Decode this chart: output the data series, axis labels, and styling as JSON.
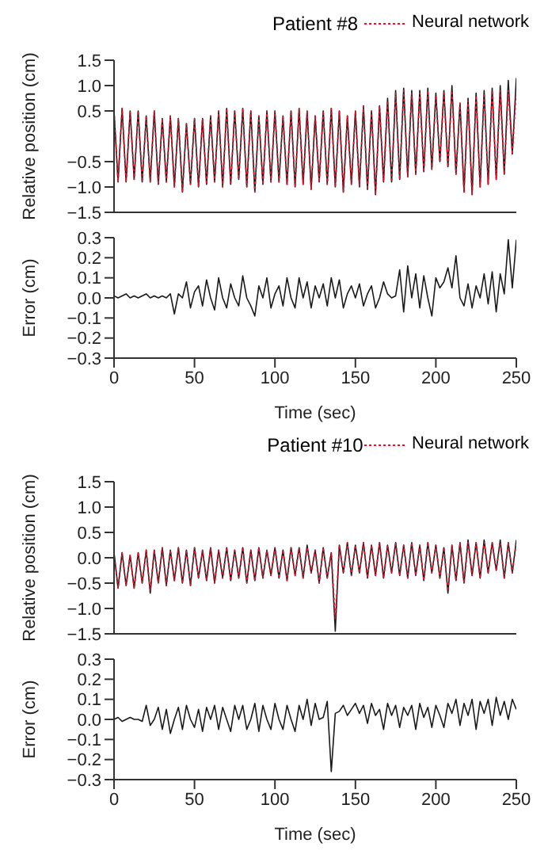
{
  "chart_data": [
    {
      "type": "line",
      "title": "Patient #8",
      "ylabel": "Relative position (cm)",
      "legend": "top right",
      "tick_labels": "y",
      "x": [
        0,
        2.5,
        5,
        7.5,
        10,
        12.5,
        15,
        17.5,
        20,
        22.5,
        25,
        27.5,
        30,
        32.5,
        35,
        37.5,
        40,
        42.5,
        45,
        47.5,
        50,
        52.5,
        55,
        57.5,
        60,
        62.5,
        65,
        67.5,
        70,
        72.5,
        75,
        77.5,
        80,
        82.5,
        85,
        87.5,
        90,
        92.5,
        95,
        97.5,
        100,
        102.5,
        105,
        107.5,
        110,
        112.5,
        115,
        117.5,
        120,
        122.5,
        125,
        127.5,
        130,
        132.5,
        135,
        137.5,
        140,
        142.5,
        145,
        147.5,
        150,
        152.5,
        155,
        157.5,
        160,
        162.5,
        165,
        167.5,
        170,
        172.5,
        175,
        177.5,
        180,
        182.5,
        185,
        187.5,
        190,
        192.5,
        195,
        197.5,
        200,
        202.5,
        205,
        207.5,
        210,
        212.5,
        215,
        217.5,
        220,
        222.5,
        225,
        227.5,
        230,
        232.5,
        235,
        237.5,
        240,
        242.5,
        245,
        247.5,
        250
      ],
      "xlim": [
        0,
        250
      ],
      "ylim": [
        -1.5,
        1.5
      ],
      "yticks": [
        {
          "value": -1.5,
          "label": "−1.5"
        },
        {
          "value": -1,
          "label": "−1.0"
        },
        {
          "value": -0.5,
          "label": "−0.5"
        },
        0.5,
        {
          "value": 1,
          "label": "1.0"
        },
        1.5
      ],
      "series": [
        {
          "color": "#1a1a1a",
          "line_style": "solid",
          "values": [
            0.5,
            -0.9,
            0.55,
            -0.9,
            0.5,
            -0.85,
            0.5,
            -0.9,
            0.4,
            -0.9,
            0.5,
            -0.95,
            0.35,
            -0.9,
            0.4,
            -1.0,
            0.35,
            -1.1,
            0.25,
            -0.95,
            0.35,
            -1.0,
            0.35,
            -0.95,
            0.4,
            -0.9,
            0.5,
            -1.0,
            0.55,
            -0.95,
            0.5,
            -0.85,
            0.55,
            -1.0,
            0.5,
            -1.1,
            0.4,
            -0.95,
            0.5,
            -0.9,
            0.5,
            -0.9,
            0.4,
            -0.95,
            0.5,
            -1.0,
            0.55,
            -0.95,
            0.5,
            -1.05,
            0.4,
            -0.9,
            0.5,
            -0.95,
            0.55,
            -1.0,
            0.5,
            -1.1,
            0.4,
            -0.95,
            0.5,
            -1.0,
            0.6,
            -1.05,
            0.5,
            -1.15,
            0.6,
            -0.9,
            0.75,
            -0.9,
            0.9,
            -0.85,
            0.95,
            -0.8,
            0.9,
            -0.75,
            0.9,
            -0.7,
            0.95,
            -0.65,
            0.85,
            -0.5,
            0.9,
            -0.6,
            1.0,
            -0.75,
            0.65,
            -1.1,
            0.75,
            -1.15,
            0.85,
            -1.0,
            0.9,
            -0.95,
            0.95,
            -0.85,
            1.0,
            -0.75,
            1.1,
            -0.35,
            1.15
          ]
        },
        {
          "name": "Neural network",
          "color": "#e8102a",
          "line_style": "dotted",
          "values": [
            0.5,
            -0.9,
            0.55,
            -0.9,
            0.5,
            -0.85,
            0.5,
            -0.9,
            0.4,
            -0.9,
            0.5,
            -0.95,
            0.35,
            -0.9,
            0.4,
            -1.0,
            0.35,
            -1.1,
            0.25,
            -0.95,
            0.35,
            -1.0,
            0.35,
            -0.95,
            0.4,
            -0.9,
            0.5,
            -1.0,
            0.55,
            -0.95,
            0.5,
            -0.85,
            0.55,
            -1.0,
            0.5,
            -1.1,
            0.4,
            -0.95,
            0.5,
            -0.9,
            0.5,
            -0.9,
            0.4,
            -0.95,
            0.5,
            -1.0,
            0.55,
            -0.95,
            0.5,
            -1.05,
            0.4,
            -0.9,
            0.5,
            -0.95,
            0.55,
            -1.0,
            0.5,
            -1.1,
            0.4,
            -0.95,
            0.5,
            -1.0,
            0.6,
            -1.05,
            0.5,
            -1.15,
            0.6,
            -0.9,
            0.7,
            -0.9,
            0.85,
            -0.85,
            0.9,
            -0.8,
            0.85,
            -0.75,
            0.85,
            -0.7,
            0.9,
            -0.65,
            0.8,
            -0.5,
            0.85,
            -0.6,
            0.9,
            -0.75,
            0.65,
            -1.1,
            0.7,
            -1.15,
            0.8,
            -1.0,
            0.85,
            -0.95,
            0.9,
            -0.85,
            0.9,
            -0.75,
            0.9,
            -0.35,
            0.9
          ]
        }
      ]
    },
    {
      "type": "line",
      "xlabel": "Time (sec)",
      "ylabel": "Error (cm)",
      "x": [
        0,
        2.5,
        5,
        7.5,
        10,
        12.5,
        15,
        17.5,
        20,
        22.5,
        25,
        27.5,
        30,
        32.5,
        35,
        37.5,
        40,
        42.5,
        45,
        47.5,
        50,
        52.5,
        55,
        57.5,
        60,
        62.5,
        65,
        67.5,
        70,
        72.5,
        75,
        77.5,
        80,
        82.5,
        85,
        87.5,
        90,
        92.5,
        95,
        97.5,
        100,
        102.5,
        105,
        107.5,
        110,
        112.5,
        115,
        117.5,
        120,
        122.5,
        125,
        127.5,
        130,
        132.5,
        135,
        137.5,
        140,
        142.5,
        145,
        147.5,
        150,
        152.5,
        155,
        157.5,
        160,
        162.5,
        165,
        167.5,
        170,
        172.5,
        175,
        177.5,
        180,
        182.5,
        185,
        187.5,
        190,
        192.5,
        195,
        197.5,
        200,
        202.5,
        205,
        207.5,
        210,
        212.5,
        215,
        217.5,
        220,
        222.5,
        225,
        227.5,
        230,
        232.5,
        235,
        237.5,
        240,
        242.5,
        245,
        247.5,
        250
      ],
      "xlim": [
        0,
        250
      ],
      "xticks": [
        0,
        50,
        100,
        150,
        200,
        250
      ],
      "ylim": [
        -0.3,
        0.3
      ],
      "yticks": [
        {
          "value": -0.3,
          "label": "−0.3"
        },
        {
          "value": -0.2,
          "label": "−0.2"
        },
        {
          "value": -0.1,
          "label": "−0.1"
        },
        {
          "value": 0,
          "label": "0.0"
        },
        0.1,
        0.2,
        0.3
      ],
      "series": [
        {
          "color": "#1a1a1a",
          "line_style": "solid",
          "values": [
            0.01,
            0.0,
            0.01,
            0.02,
            0.0,
            0.01,
            0.0,
            0.01,
            0.02,
            0.0,
            0.01,
            0.0,
            0.01,
            0.0,
            0.02,
            -0.08,
            0.02,
            0.0,
            0.08,
            -0.05,
            0.03,
            0.06,
            -0.04,
            0.09,
            0.0,
            -0.06,
            0.1,
            0.0,
            -0.05,
            0.07,
            0.0,
            -0.04,
            0.11,
            0.0,
            -0.04,
            -0.09,
            0.06,
            0.0,
            0.1,
            -0.05,
            0.02,
            0.06,
            -0.04,
            0.1,
            0.0,
            -0.05,
            0.1,
            0.0,
            0.08,
            -0.05,
            0.06,
            0.0,
            0.07,
            -0.04,
            0.1,
            0.0,
            0.09,
            -0.05,
            0.02,
            0.06,
            0.0,
            0.07,
            -0.04,
            0.02,
            0.06,
            -0.05,
            0.0,
            0.08,
            0.02,
            0.0,
            0.01,
            0.14,
            -0.07,
            0.16,
            0.0,
            0.12,
            -0.05,
            0.11,
            0.0,
            -0.09,
            0.1,
            0.05,
            0.08,
            0.15,
            0.05,
            0.21,
            0.0,
            -0.04,
            0.07,
            -0.05,
            0.06,
            0.0,
            0.12,
            -0.03,
            0.13,
            -0.07,
            0.12,
            0.02,
            0.29,
            0.05,
            0.29
          ]
        }
      ]
    },
    {
      "type": "line",
      "title": "Patient #10",
      "ylabel": "Relative position (cm)",
      "legend": "top right",
      "tick_labels": "y",
      "x": [
        0,
        2.5,
        5,
        7.5,
        10,
        12.5,
        15,
        17.5,
        20,
        22.5,
        25,
        27.5,
        30,
        32.5,
        35,
        37.5,
        40,
        42.5,
        45,
        47.5,
        50,
        52.5,
        55,
        57.5,
        60,
        62.5,
        65,
        67.5,
        70,
        72.5,
        75,
        77.5,
        80,
        82.5,
        85,
        87.5,
        90,
        92.5,
        95,
        97.5,
        100,
        102.5,
        105,
        107.5,
        110,
        112.5,
        115,
        117.5,
        120,
        122.5,
        125,
        127.5,
        130,
        132.5,
        135,
        137.5,
        140,
        142.5,
        145,
        147.5,
        150,
        152.5,
        155,
        157.5,
        160,
        162.5,
        165,
        167.5,
        170,
        172.5,
        175,
        177.5,
        180,
        182.5,
        185,
        187.5,
        190,
        192.5,
        195,
        197.5,
        200,
        202.5,
        205,
        207.5,
        210,
        212.5,
        215,
        217.5,
        220,
        222.5,
        225,
        227.5,
        230,
        232.5,
        235,
        237.5,
        240,
        242.5,
        245,
        247.5,
        250
      ],
      "xlim": [
        0,
        250
      ],
      "ylim": [
        -1.5,
        1.5
      ],
      "yticks": [
        {
          "value": -1.5,
          "label": "−1.5"
        },
        {
          "value": -1,
          "label": "−1.0"
        },
        {
          "value": -0.5,
          "label": "−0.5"
        },
        {
          "value": 0,
          "label": "0.0"
        },
        0.5,
        {
          "value": 1,
          "label": "1.0"
        },
        1.5
      ],
      "series": [
        {
          "color": "#1a1a1a",
          "line_style": "solid",
          "values": [
            0.1,
            -0.6,
            0.1,
            -0.55,
            0.05,
            -0.6,
            0.1,
            -0.5,
            0.15,
            -0.7,
            0.15,
            -0.5,
            0.2,
            -0.55,
            0.15,
            -0.45,
            0.2,
            -0.5,
            0.15,
            -0.55,
            0.2,
            -0.4,
            0.15,
            -0.45,
            0.2,
            -0.5,
            0.15,
            -0.4,
            0.2,
            -0.45,
            0.15,
            -0.4,
            0.2,
            -0.5,
            0.15,
            -0.45,
            0.2,
            -0.4,
            0.15,
            -0.35,
            0.2,
            -0.4,
            0.15,
            -0.45,
            0.2,
            -0.35,
            0.2,
            -0.4,
            0.25,
            -0.3,
            0.15,
            -0.5,
            0.2,
            -0.4,
            0.1,
            -1.45,
            0.25,
            -0.3,
            0.3,
            -0.35,
            0.25,
            -0.3,
            0.3,
            -0.4,
            0.25,
            -0.35,
            0.3,
            -0.4,
            0.25,
            -0.3,
            0.3,
            -0.35,
            0.25,
            -0.4,
            0.3,
            -0.35,
            0.25,
            -0.45,
            0.3,
            -0.3,
            0.25,
            -0.4,
            0.2,
            -0.7,
            0.25,
            -0.45,
            0.3,
            -0.5,
            0.35,
            -0.35,
            0.3,
            -0.4,
            0.35,
            -0.3,
            0.3,
            -0.25,
            0.35,
            -0.4,
            0.3,
            -0.3,
            0.35
          ]
        },
        {
          "name": "Neural network",
          "color": "#e8102a",
          "line_style": "dotted",
          "values": [
            0.1,
            -0.6,
            0.1,
            -0.55,
            0.05,
            -0.6,
            0.1,
            -0.5,
            0.15,
            -0.65,
            0.15,
            -0.5,
            0.2,
            -0.55,
            0.15,
            -0.45,
            0.2,
            -0.5,
            0.15,
            -0.55,
            0.2,
            -0.4,
            0.15,
            -0.45,
            0.2,
            -0.5,
            0.15,
            -0.4,
            0.2,
            -0.45,
            0.15,
            -0.4,
            0.2,
            -0.5,
            0.15,
            -0.45,
            0.2,
            -0.4,
            0.15,
            -0.35,
            0.2,
            -0.4,
            0.15,
            -0.45,
            0.2,
            -0.35,
            0.2,
            -0.4,
            0.2,
            -0.3,
            0.15,
            -0.5,
            0.2,
            -0.4,
            0.1,
            -1.2,
            0.25,
            -0.3,
            0.3,
            -0.35,
            0.25,
            -0.3,
            0.3,
            -0.4,
            0.25,
            -0.35,
            0.3,
            -0.4,
            0.25,
            -0.3,
            0.3,
            -0.35,
            0.25,
            -0.4,
            0.3,
            -0.35,
            0.25,
            -0.45,
            0.3,
            -0.3,
            0.25,
            -0.4,
            0.2,
            -0.65,
            0.25,
            -0.45,
            0.3,
            -0.5,
            0.3,
            -0.35,
            0.3,
            -0.4,
            0.3,
            -0.3,
            0.3,
            -0.25,
            0.3,
            -0.4,
            0.3,
            -0.3,
            0.3
          ]
        }
      ]
    },
    {
      "type": "line",
      "xlabel": "Time (sec)",
      "ylabel": "Error (cm)",
      "x": [
        0,
        2.5,
        5,
        7.5,
        10,
        12.5,
        15,
        17.5,
        20,
        22.5,
        25,
        27.5,
        30,
        32.5,
        35,
        37.5,
        40,
        42.5,
        45,
        47.5,
        50,
        52.5,
        55,
        57.5,
        60,
        62.5,
        65,
        67.5,
        70,
        72.5,
        75,
        77.5,
        80,
        82.5,
        85,
        87.5,
        90,
        92.5,
        95,
        97.5,
        100,
        102.5,
        105,
        107.5,
        110,
        112.5,
        115,
        117.5,
        120,
        122.5,
        125,
        127.5,
        130,
        132.5,
        135,
        137.5,
        140,
        142.5,
        145,
        147.5,
        150,
        152.5,
        155,
        157.5,
        160,
        162.5,
        165,
        167.5,
        170,
        172.5,
        175,
        177.5,
        180,
        182.5,
        185,
        187.5,
        190,
        192.5,
        195,
        197.5,
        200,
        202.5,
        205,
        207.5,
        210,
        212.5,
        215,
        217.5,
        220,
        222.5,
        225,
        227.5,
        230,
        232.5,
        235,
        237.5,
        240,
        242.5,
        245,
        247.5,
        250
      ],
      "xlim": [
        0,
        250
      ],
      "xticks": [
        0,
        50,
        100,
        150,
        200,
        250
      ],
      "ylim": [
        -0.3,
        0.3
      ],
      "yticks": [
        {
          "value": -0.3,
          "label": "−0.3"
        },
        {
          "value": -0.2,
          "label": "−0.2"
        },
        {
          "value": -0.1,
          "label": "−0.1"
        },
        {
          "value": 0,
          "label": "0.0"
        },
        0.1,
        0.2,
        0.3
      ],
      "series": [
        {
          "color": "#1a1a1a",
          "line_style": "solid",
          "values": [
            0.0,
            0.01,
            -0.01,
            0.0,
            0.01,
            0.0,
            0.0,
            -0.01,
            0.07,
            -0.03,
            0.0,
            0.06,
            -0.05,
            0.05,
            -0.07,
            0.0,
            0.06,
            -0.05,
            0.07,
            0.0,
            -0.04,
            0.05,
            -0.06,
            0.06,
            0.0,
            0.07,
            -0.05,
            0.06,
            0.0,
            -0.06,
            0.07,
            0.0,
            0.07,
            -0.05,
            0.0,
            0.08,
            -0.06,
            0.07,
            0.0,
            -0.05,
            0.08,
            0.0,
            -0.05,
            0.07,
            0.0,
            -0.06,
            0.07,
            0.0,
            0.1,
            -0.03,
            0.08,
            0.0,
            0.01,
            0.09,
            -0.26,
            0.03,
            0.04,
            0.07,
            0.02,
            0.05,
            0.08,
            0.03,
            0.07,
            -0.02,
            0.08,
            0.02,
            0.05,
            -0.05,
            0.08,
            0.02,
            0.07,
            -0.04,
            0.06,
            0.02,
            0.07,
            -0.05,
            0.08,
            0.01,
            0.06,
            -0.04,
            0.07,
            0.02,
            -0.04,
            0.08,
            0.03,
            0.1,
            -0.03,
            0.08,
            0.02,
            0.1,
            -0.05,
            0.09,
            0.03,
            0.1,
            -0.03,
            0.11,
            0.02,
            0.09,
            0.0,
            0.1,
            0.05
          ]
        }
      ]
    }
  ]
}
